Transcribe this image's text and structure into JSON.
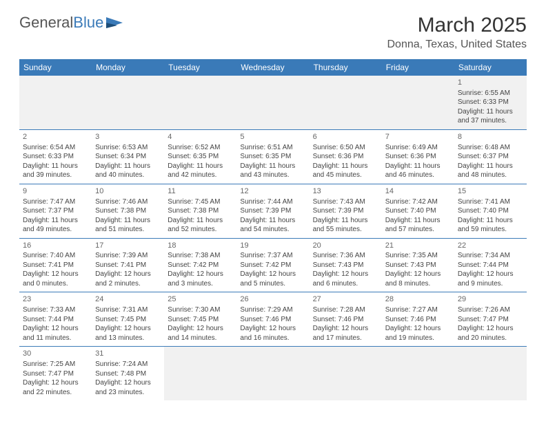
{
  "brand": {
    "part1": "General",
    "part2": "Blue"
  },
  "title": "March 2025",
  "location": "Donna, Texas, United States",
  "colors": {
    "header_bg": "#3a7ab8",
    "header_text": "#ffffff",
    "border": "#3a7ab8",
    "empty_bg": "#f1f1f1",
    "text": "#444444"
  },
  "day_headers": [
    "Sunday",
    "Monday",
    "Tuesday",
    "Wednesday",
    "Thursday",
    "Friday",
    "Saturday"
  ],
  "weeks": [
    [
      null,
      null,
      null,
      null,
      null,
      null,
      {
        "n": "1",
        "sr": "Sunrise: 6:55 AM",
        "ss": "Sunset: 6:33 PM",
        "d1": "Daylight: 11 hours",
        "d2": "and 37 minutes."
      }
    ],
    [
      {
        "n": "2",
        "sr": "Sunrise: 6:54 AM",
        "ss": "Sunset: 6:33 PM",
        "d1": "Daylight: 11 hours",
        "d2": "and 39 minutes."
      },
      {
        "n": "3",
        "sr": "Sunrise: 6:53 AM",
        "ss": "Sunset: 6:34 PM",
        "d1": "Daylight: 11 hours",
        "d2": "and 40 minutes."
      },
      {
        "n": "4",
        "sr": "Sunrise: 6:52 AM",
        "ss": "Sunset: 6:35 PM",
        "d1": "Daylight: 11 hours",
        "d2": "and 42 minutes."
      },
      {
        "n": "5",
        "sr": "Sunrise: 6:51 AM",
        "ss": "Sunset: 6:35 PM",
        "d1": "Daylight: 11 hours",
        "d2": "and 43 minutes."
      },
      {
        "n": "6",
        "sr": "Sunrise: 6:50 AM",
        "ss": "Sunset: 6:36 PM",
        "d1": "Daylight: 11 hours",
        "d2": "and 45 minutes."
      },
      {
        "n": "7",
        "sr": "Sunrise: 6:49 AM",
        "ss": "Sunset: 6:36 PM",
        "d1": "Daylight: 11 hours",
        "d2": "and 46 minutes."
      },
      {
        "n": "8",
        "sr": "Sunrise: 6:48 AM",
        "ss": "Sunset: 6:37 PM",
        "d1": "Daylight: 11 hours",
        "d2": "and 48 minutes."
      }
    ],
    [
      {
        "n": "9",
        "sr": "Sunrise: 7:47 AM",
        "ss": "Sunset: 7:37 PM",
        "d1": "Daylight: 11 hours",
        "d2": "and 49 minutes."
      },
      {
        "n": "10",
        "sr": "Sunrise: 7:46 AM",
        "ss": "Sunset: 7:38 PM",
        "d1": "Daylight: 11 hours",
        "d2": "and 51 minutes."
      },
      {
        "n": "11",
        "sr": "Sunrise: 7:45 AM",
        "ss": "Sunset: 7:38 PM",
        "d1": "Daylight: 11 hours",
        "d2": "and 52 minutes."
      },
      {
        "n": "12",
        "sr": "Sunrise: 7:44 AM",
        "ss": "Sunset: 7:39 PM",
        "d1": "Daylight: 11 hours",
        "d2": "and 54 minutes."
      },
      {
        "n": "13",
        "sr": "Sunrise: 7:43 AM",
        "ss": "Sunset: 7:39 PM",
        "d1": "Daylight: 11 hours",
        "d2": "and 55 minutes."
      },
      {
        "n": "14",
        "sr": "Sunrise: 7:42 AM",
        "ss": "Sunset: 7:40 PM",
        "d1": "Daylight: 11 hours",
        "d2": "and 57 minutes."
      },
      {
        "n": "15",
        "sr": "Sunrise: 7:41 AM",
        "ss": "Sunset: 7:40 PM",
        "d1": "Daylight: 11 hours",
        "d2": "and 59 minutes."
      }
    ],
    [
      {
        "n": "16",
        "sr": "Sunrise: 7:40 AM",
        "ss": "Sunset: 7:41 PM",
        "d1": "Daylight: 12 hours",
        "d2": "and 0 minutes."
      },
      {
        "n": "17",
        "sr": "Sunrise: 7:39 AM",
        "ss": "Sunset: 7:41 PM",
        "d1": "Daylight: 12 hours",
        "d2": "and 2 minutes."
      },
      {
        "n": "18",
        "sr": "Sunrise: 7:38 AM",
        "ss": "Sunset: 7:42 PM",
        "d1": "Daylight: 12 hours",
        "d2": "and 3 minutes."
      },
      {
        "n": "19",
        "sr": "Sunrise: 7:37 AM",
        "ss": "Sunset: 7:42 PM",
        "d1": "Daylight: 12 hours",
        "d2": "and 5 minutes."
      },
      {
        "n": "20",
        "sr": "Sunrise: 7:36 AM",
        "ss": "Sunset: 7:43 PM",
        "d1": "Daylight: 12 hours",
        "d2": "and 6 minutes."
      },
      {
        "n": "21",
        "sr": "Sunrise: 7:35 AM",
        "ss": "Sunset: 7:43 PM",
        "d1": "Daylight: 12 hours",
        "d2": "and 8 minutes."
      },
      {
        "n": "22",
        "sr": "Sunrise: 7:34 AM",
        "ss": "Sunset: 7:44 PM",
        "d1": "Daylight: 12 hours",
        "d2": "and 9 minutes."
      }
    ],
    [
      {
        "n": "23",
        "sr": "Sunrise: 7:33 AM",
        "ss": "Sunset: 7:44 PM",
        "d1": "Daylight: 12 hours",
        "d2": "and 11 minutes."
      },
      {
        "n": "24",
        "sr": "Sunrise: 7:31 AM",
        "ss": "Sunset: 7:45 PM",
        "d1": "Daylight: 12 hours",
        "d2": "and 13 minutes."
      },
      {
        "n": "25",
        "sr": "Sunrise: 7:30 AM",
        "ss": "Sunset: 7:45 PM",
        "d1": "Daylight: 12 hours",
        "d2": "and 14 minutes."
      },
      {
        "n": "26",
        "sr": "Sunrise: 7:29 AM",
        "ss": "Sunset: 7:46 PM",
        "d1": "Daylight: 12 hours",
        "d2": "and 16 minutes."
      },
      {
        "n": "27",
        "sr": "Sunrise: 7:28 AM",
        "ss": "Sunset: 7:46 PM",
        "d1": "Daylight: 12 hours",
        "d2": "and 17 minutes."
      },
      {
        "n": "28",
        "sr": "Sunrise: 7:27 AM",
        "ss": "Sunset: 7:46 PM",
        "d1": "Daylight: 12 hours",
        "d2": "and 19 minutes."
      },
      {
        "n": "29",
        "sr": "Sunrise: 7:26 AM",
        "ss": "Sunset: 7:47 PM",
        "d1": "Daylight: 12 hours",
        "d2": "and 20 minutes."
      }
    ],
    [
      {
        "n": "30",
        "sr": "Sunrise: 7:25 AM",
        "ss": "Sunset: 7:47 PM",
        "d1": "Daylight: 12 hours",
        "d2": "and 22 minutes."
      },
      {
        "n": "31",
        "sr": "Sunrise: 7:24 AM",
        "ss": "Sunset: 7:48 PM",
        "d1": "Daylight: 12 hours",
        "d2": "and 23 minutes."
      },
      null,
      null,
      null,
      null,
      null
    ]
  ]
}
